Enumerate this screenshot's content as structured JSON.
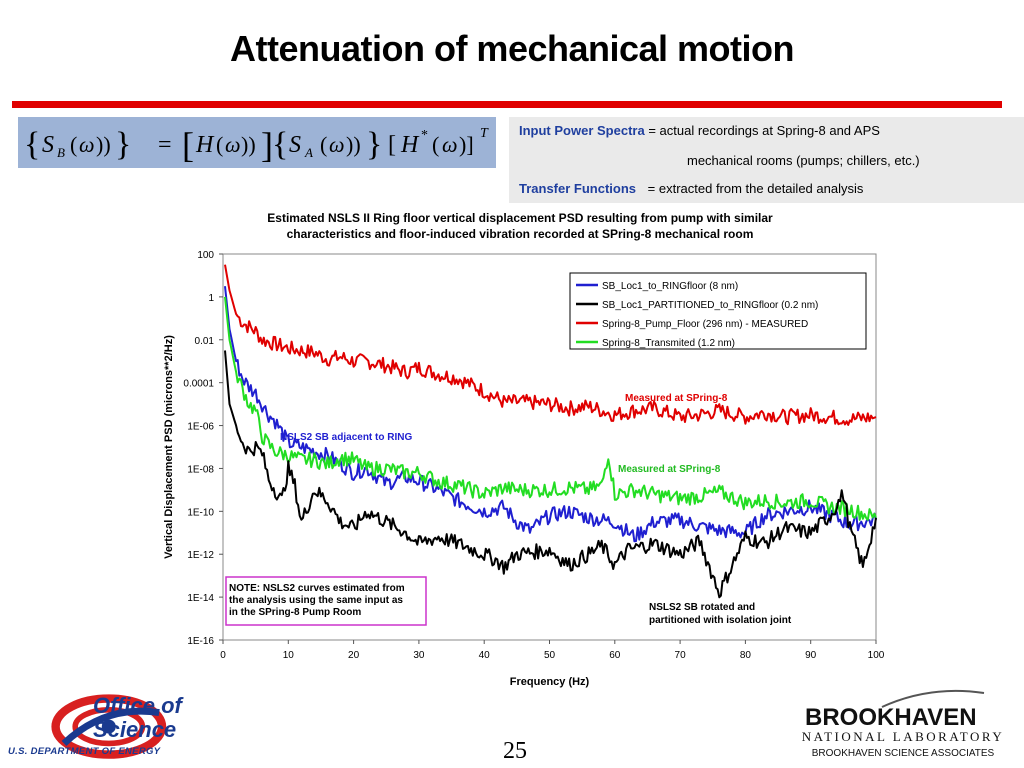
{
  "slide": {
    "title": "Attenuation of mechanical motion",
    "page_number": "25"
  },
  "equation": {
    "text": "{S_B(ω)} = [H(ω)]{S_A(ω)} [H*(ω)]^T"
  },
  "info": {
    "line1_label": "Input Power Spectra",
    "line1_value": "= actual recordings at Spring-8 and APS",
    "line2_value": "mechanical rooms (pumps; chillers, etc.)",
    "line3_label": "Transfer Functions",
    "line3_value": "= extracted from the detailed analysis"
  },
  "logos": {
    "office_line1": "Office of",
    "office_line2": "Science",
    "doe": "U.S. DEPARTMENT OF ENERGY",
    "bnl_name": "BROOKHAVEN",
    "bnl_sub": "NATIONAL LABORATORY",
    "bnl_assoc": "BROOKHAVEN SCIENCE ASSOCIATES"
  },
  "colors": {
    "title_bar": "#e00000",
    "blue": "#1f1fd0",
    "black": "#000000",
    "red": "#e00000",
    "green": "#22dd22",
    "note_border": "#cc33cc"
  },
  "chart_data": {
    "type": "line",
    "title": "Estimated NSLS II Ring floor vertical displacement PSD resulting from pump with similar characteristics and floor-induced vibration recorded at SPring-8 mechanical room",
    "title_lines": [
      "Estimated NSLS II Ring floor vertical displacement PSD resulting from pump with similar",
      "characteristics and floor-induced vibration recorded at SPring-8 mechanical room"
    ],
    "xlabel": "Frequency (Hz)",
    "ylabel": "Vertical Displacement PSD (microns**2/Hz)",
    "xlim": [
      0,
      100
    ],
    "ylim_log10": [
      -16,
      2
    ],
    "y_scale": "log",
    "x_ticks": [
      "0",
      "10",
      "20",
      "30",
      "40",
      "50",
      "60",
      "70",
      "80",
      "90",
      "100"
    ],
    "y_ticks": [
      "100",
      "1",
      "0.01",
      "0.0001",
      "1E-06",
      "1E-08",
      "1E-10",
      "1E-12",
      "1E-14",
      "1E-16"
    ],
    "legend": [
      {
        "name": "SB_Loc1_to_RINGfloor (8 nm)",
        "color": "#1f1fd0"
      },
      {
        "name": "SB_Loc1_PARTITIONED_to_RINGfloor (0.2 nm)",
        "color": "#000000"
      },
      {
        "name": "Spring-8_Pump_Floor (296 nm) - MEASURED",
        "color": "#e00000"
      },
      {
        "name": "Spring-8_Transmited (1.2 nm)",
        "color": "#22dd22"
      }
    ],
    "legend_position": "top-right",
    "annotations": [
      {
        "text": "Measured at SPring-8",
        "color": "#e00000"
      },
      {
        "text": "NSLS2 SB adjacent to RING",
        "color": "#1f1fd0"
      },
      {
        "text": "Measured at SPring-8",
        "color": "#22bb22"
      },
      {
        "text": "NSLS2 SB rotated and",
        "color": "#000000"
      },
      {
        "text": "partitioned with isolation joint",
        "color": "#000000"
      }
    ],
    "note_lines": [
      "NOTE: NSLS2 curves estimated from",
      "the analysis using the same input as",
      "in the SPring-8 Pump Room"
    ],
    "series": [
      {
        "name": "Spring-8_Pump_Floor (296 nm) - MEASURED",
        "color": "#e00000",
        "x": [
          0.3,
          1,
          2,
          3,
          4,
          5,
          6,
          8,
          10,
          12,
          14,
          16,
          18,
          20,
          22,
          25,
          28,
          30,
          33,
          36,
          40,
          43,
          46,
          50,
          53,
          56,
          60,
          63,
          66,
          70,
          73,
          76,
          80,
          83,
          86,
          90,
          93,
          96,
          100
        ],
        "log10": [
          1.5,
          0.3,
          -0.8,
          -1.2,
          -1.4,
          -1.6,
          -2.0,
          -2.2,
          -2.4,
          -2.5,
          -2.6,
          -2.9,
          -2.8,
          -3.0,
          -3.0,
          -3.2,
          -3.5,
          -3.3,
          -3.6,
          -3.8,
          -4.4,
          -4.9,
          -4.9,
          -5.0,
          -5.2,
          -5.1,
          -5.5,
          -5.3,
          -5.2,
          -5.6,
          -5.5,
          -5.3,
          -5.6,
          -5.4,
          -5.6,
          -5.5,
          -5.6,
          -5.7,
          -5.6
        ]
      },
      {
        "name": "SB_Loc1_to_RINGfloor (8 nm)",
        "color": "#1f1fd0",
        "x": [
          0.3,
          1,
          2,
          3,
          4,
          5,
          6,
          7,
          8,
          10,
          12,
          14,
          16,
          18,
          20,
          22,
          25,
          28,
          30,
          33,
          36,
          40,
          43,
          45,
          47,
          50,
          53,
          56,
          60,
          63,
          66,
          70,
          73,
          76,
          80,
          83,
          86,
          90,
          93,
          96,
          100
        ],
        "log10": [
          0.5,
          -1.5,
          -3.0,
          -3.8,
          -4.2,
          -4.5,
          -5.0,
          -5.5,
          -5.8,
          -6.8,
          -7.0,
          -7.2,
          -7.4,
          -7.8,
          -8.2,
          -8.0,
          -8.7,
          -8.4,
          -8.6,
          -9.0,
          -9.5,
          -10.0,
          -9.8,
          -10.5,
          -10.9,
          -10.2,
          -10.0,
          -10.3,
          -10.5,
          -11.2,
          -10.5,
          -10.4,
          -10.7,
          -10.9,
          -11.0,
          -10.2,
          -10.0,
          -9.8,
          -10.2,
          -10.6,
          -10.4
        ]
      },
      {
        "name": "Spring-8_Transmited (1.2 nm)",
        "color": "#22dd22",
        "x": [
          0.3,
          1,
          2,
          3,
          4,
          5,
          6,
          7,
          8,
          10,
          12,
          14,
          16,
          18,
          20,
          22,
          25,
          28,
          30,
          33,
          36,
          40,
          43,
          45,
          50,
          53,
          56,
          58,
          59,
          60,
          63,
          66,
          70,
          73,
          76,
          80,
          83,
          86,
          90,
          93,
          96,
          100
        ],
        "log10": [
          0.0,
          -2.0,
          -3.5,
          -4.3,
          -5.0,
          -5.3,
          -6.5,
          -6.9,
          -7.2,
          -7.4,
          -7.6,
          -7.6,
          -7.8,
          -7.5,
          -7.6,
          -8.0,
          -8.0,
          -8.2,
          -8.2,
          -8.6,
          -8.8,
          -9.2,
          -8.9,
          -9.0,
          -9.0,
          -8.9,
          -9.0,
          -8.8,
          -7.3,
          -9.2,
          -9.0,
          -9.2,
          -9.4,
          -9.3,
          -9.1,
          -9.6,
          -9.5,
          -9.6,
          -9.5,
          -9.8,
          -9.9,
          -10.3
        ]
      },
      {
        "name": "SB_Loc1_PARTITIONED_to_RINGfloor (0.2 nm)",
        "color": "#000000",
        "x": [
          0.3,
          1,
          2,
          3,
          4,
          5,
          6,
          7,
          8,
          9,
          10,
          11,
          12,
          14,
          16,
          18,
          20,
          22,
          25,
          28,
          30,
          33,
          36,
          40,
          42,
          43,
          45,
          50,
          53,
          56,
          58,
          60,
          62,
          66,
          70,
          73,
          76,
          80,
          83,
          86,
          90,
          93,
          95,
          96,
          98,
          100
        ],
        "log10": [
          -2.5,
          -5.0,
          -6.0,
          -6.8,
          -7.2,
          -7.0,
          -7.3,
          -8.5,
          -9.0,
          -9.5,
          -8.0,
          -8.8,
          -10.5,
          -9.0,
          -9.5,
          -10.5,
          -10.8,
          -10.0,
          -10.5,
          -11.0,
          -11.5,
          -11.2,
          -11.5,
          -12.0,
          -12.3,
          -12.6,
          -12.0,
          -11.8,
          -12.5,
          -12.0,
          -11.6,
          -12.5,
          -11.8,
          -11.5,
          -12.0,
          -11.4,
          -13.8,
          -11.2,
          -11.5,
          -10.8,
          -11.0,
          -10.2,
          -9.2,
          -10.8,
          -12.6,
          -10.3
        ]
      }
    ]
  }
}
